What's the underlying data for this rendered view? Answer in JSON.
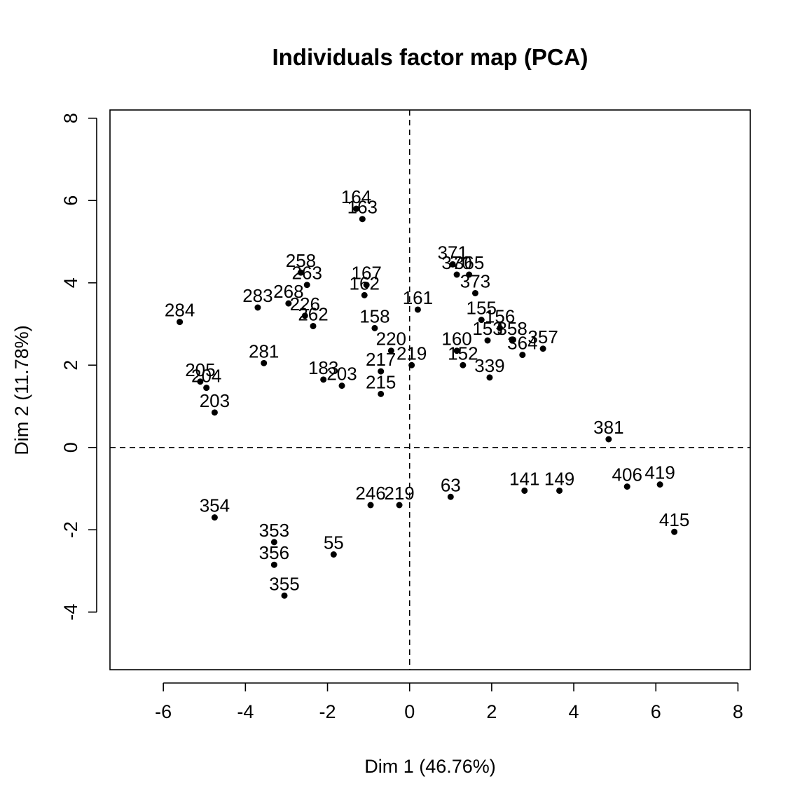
{
  "chart_data": {
    "type": "scatter",
    "title": "Individuals factor map (PCA)",
    "xlabel": "Dim 1 (46.76%)",
    "ylabel": "Dim 2 (11.78%)",
    "xlim": [
      -7.3,
      8.3
    ],
    "ylim": [
      -5.4,
      8.2
    ],
    "xticks": [
      -6,
      -4,
      -2,
      0,
      2,
      4,
      6,
      8
    ],
    "yticks": [
      -4,
      -2,
      0,
      2,
      4,
      6,
      8
    ],
    "reference_lines": {
      "x": 0,
      "y": 0,
      "style": "dashed"
    },
    "grid": false,
    "point_color": "#000000",
    "labeled_points": [
      {
        "label": "164",
        "x": -1.3,
        "y": 5.8
      },
      {
        "label": "163",
        "x": -1.15,
        "y": 5.55
      },
      {
        "label": "258",
        "x": -2.65,
        "y": 4.25
      },
      {
        "label": "263",
        "x": -2.5,
        "y": 3.95
      },
      {
        "label": "167",
        "x": -1.05,
        "y": 3.95
      },
      {
        "label": "162",
        "x": -1.1,
        "y": 3.7
      },
      {
        "label": "371",
        "x": 1.05,
        "y": 4.45
      },
      {
        "label": "370",
        "x": 1.15,
        "y": 4.2
      },
      {
        "label": "365",
        "x": 1.45,
        "y": 4.2
      },
      {
        "label": "373",
        "x": 1.6,
        "y": 3.75
      },
      {
        "label": "161",
        "x": 0.2,
        "y": 3.35
      },
      {
        "label": "155",
        "x": 1.75,
        "y": 3.1
      },
      {
        "label": "156",
        "x": 2.2,
        "y": 2.9
      },
      {
        "label": "284",
        "x": -5.6,
        "y": 3.05
      },
      {
        "label": "283",
        "x": -3.7,
        "y": 3.4
      },
      {
        "label": "268",
        "x": -2.95,
        "y": 3.5
      },
      {
        "label": "226",
        "x": -2.55,
        "y": 3.2
      },
      {
        "label": "262",
        "x": -2.35,
        "y": 2.95
      },
      {
        "label": "158",
        "x": -0.85,
        "y": 2.9
      },
      {
        "label": "160",
        "x": 1.15,
        "y": 2.35
      },
      {
        "label": "153",
        "x": 1.9,
        "y": 2.6
      },
      {
        "label": "358",
        "x": 2.5,
        "y": 2.6
      },
      {
        "label": "357",
        "x": 3.25,
        "y": 2.4
      },
      {
        "label": "364",
        "x": 2.75,
        "y": 2.25
      },
      {
        "label": "220",
        "x": -0.45,
        "y": 2.35
      },
      {
        "label": "219",
        "x": 0.05,
        "y": 2.0
      },
      {
        "label": "281",
        "x": -3.55,
        "y": 2.05
      },
      {
        "label": "205",
        "x": -5.1,
        "y": 1.6
      },
      {
        "label": "204",
        "x": -4.95,
        "y": 1.45
      },
      {
        "label": "203",
        "x": -4.75,
        "y": 0.85
      },
      {
        "label": "381",
        "x": 4.85,
        "y": 0.2
      },
      {
        "label": "419",
        "x": 6.1,
        "y": -0.9
      },
      {
        "label": "406",
        "x": 5.3,
        "y": -0.95
      },
      {
        "label": "415",
        "x": 6.45,
        "y": -2.05
      },
      {
        "label": "354",
        "x": -4.75,
        "y": -1.7
      },
      {
        "label": "55",
        "x": -1.85,
        "y": -2.6
      },
      {
        "label": "353",
        "x": -3.3,
        "y": -2.3
      },
      {
        "label": "356",
        "x": -3.3,
        "y": -2.85
      },
      {
        "label": "355",
        "x": -3.05,
        "y": -3.6
      },
      {
        "label": "149",
        "x": 3.65,
        "y": -1.05
      },
      {
        "label": "141",
        "x": 2.8,
        "y": -1.05
      },
      {
        "label": "183",
        "x": -2.1,
        "y": 1.65
      },
      {
        "label": "217",
        "x": -0.7,
        "y": 1.85
      },
      {
        "label": "203",
        "x": -1.65,
        "y": 1.5
      },
      {
        "label": "152",
        "x": 1.3,
        "y": 2.0
      },
      {
        "label": "339",
        "x": 1.95,
        "y": 1.7
      },
      {
        "label": "215",
        "x": -0.7,
        "y": 1.3
      },
      {
        "label": "246",
        "x": -0.95,
        "y": -1.4
      },
      {
        "label": "219",
        "x": -0.25,
        "y": -1.4
      },
      {
        "label": "63",
        "x": 1.0,
        "y": -1.2
      }
    ]
  }
}
